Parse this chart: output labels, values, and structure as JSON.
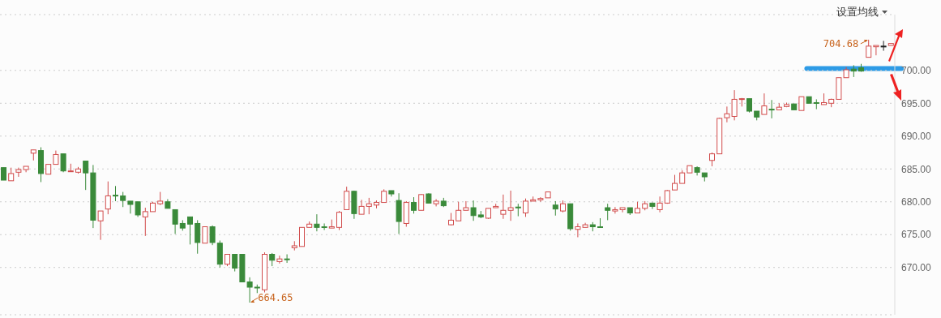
{
  "chart_data": {
    "type": "candlestick",
    "categories": [
      null,
      null,
      null,
      null,
      null,
      null,
      null,
      null,
      null,
      null,
      null,
      null,
      null,
      null,
      null,
      null,
      null,
      null,
      null,
      null,
      null,
      null,
      null,
      null,
      null,
      null,
      null,
      null,
      null,
      null,
      null,
      null,
      null,
      null,
      null,
      null,
      null,
      null,
      null,
      null,
      null,
      null,
      null,
      null,
      null,
      null,
      null,
      null,
      null,
      null,
      null,
      null,
      null,
      null,
      null,
      null,
      null,
      null,
      null,
      null,
      null,
      null,
      null,
      null,
      null,
      null,
      null,
      null,
      null,
      null,
      null,
      null,
      null,
      null,
      null,
      null,
      null,
      null,
      null,
      null,
      null,
      null,
      null,
      null,
      null,
      null,
      null,
      null,
      null,
      null,
      null,
      null,
      null,
      null,
      null,
      null,
      null,
      null,
      null,
      null,
      null,
      null,
      null,
      null,
      null,
      null,
      null,
      null,
      null,
      null,
      null,
      null,
      null,
      null,
      null,
      null,
      null,
      null,
      null,
      null
    ],
    "ohlc": [
      [
        685.2,
        685.2,
        683.3,
        683.3
      ],
      [
        683.2,
        685.2,
        683.2,
        684.3
      ],
      [
        684.5,
        685.2,
        683.8,
        684.9
      ],
      [
        684.9,
        685.4,
        684.5,
        685.4
      ],
      [
        687.4,
        687.9,
        686.3,
        687.9
      ],
      [
        687.8,
        688.3,
        683.0,
        684.3
      ],
      [
        684.2,
        685.7,
        684.2,
        685.7
      ],
      [
        685.7,
        687.8,
        685.7,
        687.2
      ],
      [
        687.3,
        687.3,
        684.5,
        684.7
      ],
      [
        684.6,
        685.8,
        684.6,
        684.7
      ],
      [
        684.5,
        685.3,
        684.3,
        685.0
      ],
      [
        686.2,
        686.2,
        681.8,
        684.4
      ],
      [
        684.4,
        685.6,
        676.0,
        677.2
      ],
      [
        677.1,
        678.6,
        674.2,
        678.6
      ],
      [
        678.9,
        683.1,
        678.1,
        680.9
      ],
      [
        681.0,
        682.4,
        680.1,
        680.9
      ],
      [
        680.9,
        681.5,
        679.2,
        680.2
      ],
      [
        680.1,
        680.1,
        678.2,
        679.6
      ],
      [
        680.0,
        680.0,
        677.7,
        678.0
      ],
      [
        677.7,
        679.1,
        674.8,
        678.5
      ],
      [
        678.5,
        680.0,
        678.5,
        679.8
      ],
      [
        679.7,
        681.5,
        679.5,
        680.1
      ],
      [
        680.0,
        680.4,
        679.0,
        679.0
      ],
      [
        678.8,
        678.8,
        675.1,
        676.6
      ],
      [
        676.7,
        677.2,
        675.6,
        676.0
      ],
      [
        677.7,
        677.7,
        673.5,
        676.6
      ],
      [
        676.7,
        677.2,
        672.1,
        673.8
      ],
      [
        673.7,
        676.2,
        673.7,
        676.2
      ],
      [
        676.2,
        676.4,
        673.4,
        673.8
      ],
      [
        673.7,
        674.1,
        670.0,
        670.5
      ],
      [
        670.5,
        672.0,
        670.2,
        672.0
      ],
      [
        672.0,
        672.0,
        669.4,
        669.9
      ],
      [
        672.0,
        672.0,
        667.8,
        667.8
      ],
      [
        667.8,
        668.5,
        664.65,
        667.0
      ],
      [
        667.0,
        667.4,
        666.1,
        666.9
      ],
      [
        666.6,
        672.3,
        666.2,
        672.0
      ],
      [
        672.0,
        672.2,
        670.2,
        671.1
      ],
      [
        670.9,
        671.8,
        670.6,
        671.3
      ],
      [
        671.3,
        672.0,
        670.7,
        671.2
      ],
      [
        673.0,
        674.0,
        672.6,
        673.3
      ],
      [
        673.2,
        676.1,
        673.2,
        676.1
      ],
      [
        676.1,
        677.0,
        676.1,
        676.6
      ],
      [
        676.6,
        678.1,
        675.5,
        676.1
      ],
      [
        676.2,
        676.7,
        675.7,
        676.1
      ],
      [
        676.0,
        677.3,
        676.0,
        676.2
      ],
      [
        676.1,
        678.6,
        675.7,
        678.4
      ],
      [
        678.8,
        682.3,
        678.8,
        681.6
      ],
      [
        681.6,
        681.7,
        677.4,
        678.2
      ],
      [
        678.1,
        680.3,
        678.1,
        679.3
      ],
      [
        679.3,
        680.6,
        678.1,
        679.7
      ],
      [
        679.5,
        680.2,
        679.0,
        679.9
      ],
      [
        679.9,
        681.9,
        679.9,
        681.6
      ],
      [
        681.7,
        681.7,
        680.8,
        681.2
      ],
      [
        680.2,
        681.3,
        675.1,
        677.0
      ],
      [
        676.7,
        680.1,
        676.2,
        679.9
      ],
      [
        679.9,
        680.7,
        678.2,
        678.7
      ],
      [
        678.7,
        681.2,
        678.7,
        681.1
      ],
      [
        681.2,
        681.3,
        679.8,
        679.8
      ],
      [
        679.7,
        680.4,
        679.3,
        680.1
      ],
      [
        680.1,
        680.6,
        679.2,
        679.4
      ],
      [
        676.5,
        678.3,
        676.4,
        677.2
      ],
      [
        677.1,
        680.0,
        677.1,
        678.7
      ],
      [
        678.7,
        680.1,
        678.7,
        679.1
      ],
      [
        679.1,
        680.2,
        677.1,
        677.9
      ],
      [
        678.0,
        678.6,
        677.5,
        677.7
      ],
      [
        677.5,
        679.0,
        677.4,
        679.0
      ],
      [
        679.1,
        679.7,
        679.1,
        679.3
      ],
      [
        678.1,
        681.1,
        677.4,
        678.7
      ],
      [
        678.7,
        681.7,
        677.1,
        679.1
      ],
      [
        679.2,
        679.7,
        677.8,
        679.1
      ],
      [
        678.3,
        680.5,
        677.7,
        680.1
      ],
      [
        680.1,
        680.8,
        680.1,
        680.3
      ],
      [
        680.3,
        680.7,
        680.0,
        680.5
      ],
      [
        680.6,
        681.5,
        680.6,
        681.5
      ],
      [
        679.5,
        680.1,
        677.9,
        678.9
      ],
      [
        678.6,
        680.2,
        678.4,
        679.7
      ],
      [
        679.7,
        679.7,
        675.6,
        675.9
      ],
      [
        675.8,
        676.7,
        674.6,
        676.2
      ],
      [
        676.1,
        676.8,
        676.1,
        676.5
      ],
      [
        676.5,
        676.9,
        675.5,
        676.2
      ],
      [
        676.2,
        677.5,
        676.1,
        676.1
      ],
      [
        679.1,
        679.7,
        677.2,
        678.7
      ],
      [
        678.6,
        679.2,
        678.2,
        678.8
      ],
      [
        678.8,
        679.1,
        678.4,
        679.1
      ],
      [
        679.1,
        679.1,
        678.0,
        678.3
      ],
      [
        678.3,
        680.0,
        678.3,
        679.0
      ],
      [
        679.0,
        680.1,
        678.7,
        679.7
      ],
      [
        679.8,
        679.9,
        678.9,
        679.3
      ],
      [
        678.8,
        680.8,
        678.4,
        679.8
      ],
      [
        679.8,
        681.8,
        679.7,
        681.7
      ],
      [
        681.8,
        684.1,
        681.8,
        682.8
      ],
      [
        682.8,
        684.8,
        682.8,
        684.4
      ],
      [
        684.4,
        685.5,
        684.4,
        685.5
      ],
      [
        685.2,
        685.4,
        684.0,
        684.5
      ],
      [
        684.4,
        684.4,
        683.1,
        683.8
      ],
      [
        686.3,
        687.5,
        685.4,
        687.3
      ],
      [
        687.3,
        692.8,
        687.3,
        692.7
      ],
      [
        692.8,
        694.5,
        692.1,
        693.4
      ],
      [
        693.0,
        697.0,
        692.4,
        695.6
      ],
      [
        695.6,
        695.8,
        694.5,
        695.7
      ],
      [
        695.7,
        695.7,
        693.6,
        693.8
      ],
      [
        693.8,
        693.8,
        692.4,
        692.9
      ],
      [
        693.3,
        696.5,
        693.3,
        694.6
      ],
      [
        694.1,
        695.5,
        692.7,
        694.0
      ],
      [
        694.0,
        695.0,
        694.0,
        694.4
      ],
      [
        694.5,
        695.1,
        694.4,
        694.8
      ],
      [
        694.9,
        694.9,
        694.0,
        694.0
      ],
      [
        693.9,
        696.0,
        693.9,
        696.0
      ],
      [
        696.0,
        696.0,
        695.0,
        695.0
      ],
      [
        695.1,
        695.6,
        694.1,
        695.0
      ],
      [
        694.8,
        696.5,
        694.8,
        695.1
      ],
      [
        695.0,
        695.7,
        694.4,
        695.6
      ],
      [
        695.6,
        698.9,
        695.6,
        698.9
      ],
      [
        698.9,
        700.5,
        698.9,
        700.1
      ],
      [
        700.2,
        700.8,
        699.0,
        699.9
      ],
      [
        700.4,
        701.0,
        699.8,
        699.9
      ],
      [
        702.0,
        704.68,
        702.0,
        703.7
      ],
      [
        703.6,
        703.8,
        702.3,
        703.8
      ],
      [
        703.7,
        704.5,
        703.0,
        703.7
      ],
      [
        703.8,
        704.1,
        703.8,
        704.1
      ]
    ],
    "colors": [
      "#3a8a3a",
      "#d14b4b",
      "#d14b4b",
      "#d14b4b",
      "#d14b4b",
      "#3a8a3a",
      "#d14b4b",
      "#d14b4b",
      "#3a8a3a",
      "#d14b4b",
      "#d14b4b",
      "#3a8a3a",
      "#3a8a3a",
      "#d14b4b",
      "#d14b4b",
      "#3a8a3a",
      "#3a8a3a",
      "#3a8a3a",
      "#3a8a3a",
      "#d14b4b",
      "#d14b4b",
      "#d14b4b",
      "#3a8a3a",
      "#3a8a3a",
      "#3a8a3a",
      "#3a8a3a",
      "#3a8a3a",
      "#d14b4b",
      "#3a8a3a",
      "#3a8a3a",
      "#d14b4b",
      "#3a8a3a",
      "#3a8a3a",
      "#3a8a3a",
      "#3a8a3a",
      "#d14b4b",
      "#3a8a3a",
      "#d14b4b",
      "#3a8a3a",
      "#d14b4b",
      "#d14b4b",
      "#d14b4b",
      "#3a8a3a",
      "#3a8a3a",
      "#d14b4b",
      "#d14b4b",
      "#d14b4b",
      "#3a8a3a",
      "#d14b4b",
      "#d14b4b",
      "#d14b4b",
      "#d14b4b",
      "#3a8a3a",
      "#3a8a3a",
      "#d14b4b",
      "#3a8a3a",
      "#d14b4b",
      "#3a8a3a",
      "#d14b4b",
      "#3a8a3a",
      "#d14b4b",
      "#d14b4b",
      "#d14b4b",
      "#3a8a3a",
      "#3a8a3a",
      "#d14b4b",
      "#d14b4b",
      "#d14b4b",
      "#d14b4b",
      "#3a8a3a",
      "#d14b4b",
      "#d14b4b",
      "#d14b4b",
      "#d14b4b",
      "#3a8a3a",
      "#d14b4b",
      "#3a8a3a",
      "#d14b4b",
      "#d14b4b",
      "#3a8a3a",
      "#3a8a3a",
      "#3a8a3a",
      "#d14b4b",
      "#d14b4b",
      "#3a8a3a",
      "#d14b4b",
      "#d14b4b",
      "#3a8a3a",
      "#d14b4b",
      "#d14b4b",
      "#d14b4b",
      "#d14b4b",
      "#d14b4b",
      "#3a8a3a",
      "#3a8a3a",
      "#d14b4b",
      "#d14b4b",
      "#d14b4b",
      "#d14b4b",
      "#d14b4b",
      "#3a8a3a",
      "#3a8a3a",
      "#d14b4b",
      "#3a8a3a",
      "#d14b4b",
      "#d14b4b",
      "#3a8a3a",
      "#d14b4b",
      "#3a8a3a",
      "#3a8a3a",
      "#d14b4b",
      "#d14b4b",
      "#d14b4b",
      "#d14b4b",
      "#3a8a3a",
      "#3a8a3a",
      "#d14b4b",
      "#d14b4b",
      "#222222",
      "#d14b4b"
    ],
    "ylim": [
      662.8,
      708.5
    ],
    "yticks": [
      {
        "value": 670,
        "label": "670.00"
      },
      {
        "value": 675,
        "label": "675.00"
      },
      {
        "value": 680,
        "label": "680.00"
      },
      {
        "value": 685,
        "label": "685.00"
      },
      {
        "value": 690,
        "label": "690.00"
      },
      {
        "value": 695,
        "label": "695.00"
      },
      {
        "value": 700,
        "label": "700.00"
      }
    ],
    "grid": "y",
    "tick_labels": "y",
    "ref_lines": [
      {
        "axis": "y",
        "value": 700.3,
        "color": "#2e9be6"
      }
    ],
    "annotations": [
      "设置均线",
      "704.68",
      "664.65"
    ]
  }
}
